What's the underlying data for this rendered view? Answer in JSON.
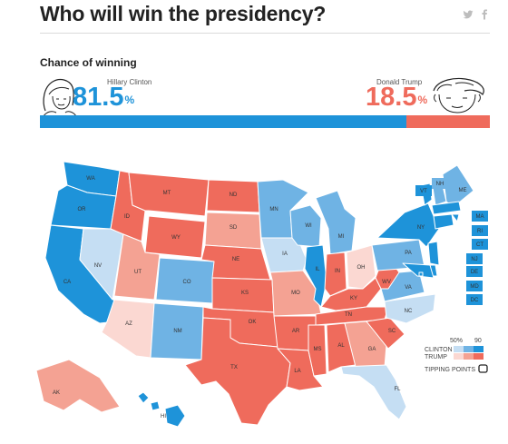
{
  "header": {
    "title": "Who will win the presidency?",
    "share_icons": [
      "twitter-icon",
      "facebook-icon"
    ]
  },
  "odds": {
    "label": "Chance of winning",
    "clinton": {
      "name": "Hillary Clinton",
      "value": "81.5",
      "unit": "%"
    },
    "trump": {
      "name": "Donald Trump",
      "value": "18.5",
      "unit": "%"
    }
  },
  "colors": {
    "clinton_strong": "#1e93d9",
    "clinton_mid": "#6fb3e4",
    "clinton_lean": "#c5def3",
    "trump_strong": "#ef6b5c",
    "trump_mid": "#f4a293",
    "trump_lean": "#fbd8d2"
  },
  "legend": {
    "scale_low": "50%",
    "scale_high": "90",
    "clinton_label": "CLINTON",
    "trump_label": "TRUMP",
    "tipping_label": "TIPPING POINTS"
  },
  "chart_data": {
    "type": "map",
    "series": [
      {
        "name": "Clinton",
        "value": 81.5
      },
      {
        "name": "Trump",
        "value": 18.5
      }
    ],
    "states": [
      {
        "abbr": "WA",
        "winner": "clinton",
        "strength": "strong"
      },
      {
        "abbr": "OR",
        "winner": "clinton",
        "strength": "strong"
      },
      {
        "abbr": "CA",
        "winner": "clinton",
        "strength": "strong"
      },
      {
        "abbr": "NV",
        "winner": "clinton",
        "strength": "lean"
      },
      {
        "abbr": "ID",
        "winner": "trump",
        "strength": "strong"
      },
      {
        "abbr": "MT",
        "winner": "trump",
        "strength": "strong"
      },
      {
        "abbr": "WY",
        "winner": "trump",
        "strength": "strong"
      },
      {
        "abbr": "UT",
        "winner": "trump",
        "strength": "mid"
      },
      {
        "abbr": "AZ",
        "winner": "trump",
        "strength": "lean"
      },
      {
        "abbr": "CO",
        "winner": "clinton",
        "strength": "mid"
      },
      {
        "abbr": "NM",
        "winner": "clinton",
        "strength": "mid"
      },
      {
        "abbr": "ND",
        "winner": "trump",
        "strength": "strong"
      },
      {
        "abbr": "SD",
        "winner": "trump",
        "strength": "mid"
      },
      {
        "abbr": "NE",
        "winner": "trump",
        "strength": "strong"
      },
      {
        "abbr": "KS",
        "winner": "trump",
        "strength": "strong"
      },
      {
        "abbr": "OK",
        "winner": "trump",
        "strength": "strong"
      },
      {
        "abbr": "TX",
        "winner": "trump",
        "strength": "strong"
      },
      {
        "abbr": "MN",
        "winner": "clinton",
        "strength": "mid"
      },
      {
        "abbr": "IA",
        "winner": "clinton",
        "strength": "lean"
      },
      {
        "abbr": "MO",
        "winner": "trump",
        "strength": "mid"
      },
      {
        "abbr": "AR",
        "winner": "trump",
        "strength": "strong"
      },
      {
        "abbr": "LA",
        "winner": "trump",
        "strength": "strong"
      },
      {
        "abbr": "WI",
        "winner": "clinton",
        "strength": "mid"
      },
      {
        "abbr": "IL",
        "winner": "clinton",
        "strength": "strong"
      },
      {
        "abbr": "MI",
        "winner": "clinton",
        "strength": "mid"
      },
      {
        "abbr": "IN",
        "winner": "trump",
        "strength": "strong"
      },
      {
        "abbr": "OH",
        "winner": "trump",
        "strength": "lean"
      },
      {
        "abbr": "KY",
        "winner": "trump",
        "strength": "strong"
      },
      {
        "abbr": "TN",
        "winner": "trump",
        "strength": "strong"
      },
      {
        "abbr": "MS",
        "winner": "trump",
        "strength": "strong"
      },
      {
        "abbr": "AL",
        "winner": "trump",
        "strength": "strong"
      },
      {
        "abbr": "GA",
        "winner": "trump",
        "strength": "mid"
      },
      {
        "abbr": "SC",
        "winner": "trump",
        "strength": "strong"
      },
      {
        "abbr": "FL",
        "winner": "clinton",
        "strength": "lean"
      },
      {
        "abbr": "NC",
        "winner": "clinton",
        "strength": "lean"
      },
      {
        "abbr": "VA",
        "winner": "clinton",
        "strength": "mid"
      },
      {
        "abbr": "WV",
        "winner": "trump",
        "strength": "strong"
      },
      {
        "abbr": "PA",
        "winner": "clinton",
        "strength": "mid"
      },
      {
        "abbr": "NY",
        "winner": "clinton",
        "strength": "strong"
      },
      {
        "abbr": "VT",
        "winner": "clinton",
        "strength": "strong"
      },
      {
        "abbr": "NH",
        "winner": "clinton",
        "strength": "mid"
      },
      {
        "abbr": "ME",
        "winner": "clinton",
        "strength": "mid"
      },
      {
        "abbr": "MA",
        "winner": "clinton",
        "strength": "strong"
      },
      {
        "abbr": "RI",
        "winner": "clinton",
        "strength": "strong"
      },
      {
        "abbr": "CT",
        "winner": "clinton",
        "strength": "strong"
      },
      {
        "abbr": "NJ",
        "winner": "clinton",
        "strength": "strong"
      },
      {
        "abbr": "DE",
        "winner": "clinton",
        "strength": "strong"
      },
      {
        "abbr": "MD",
        "winner": "clinton",
        "strength": "strong"
      },
      {
        "abbr": "DC",
        "winner": "clinton",
        "strength": "strong"
      },
      {
        "abbr": "AK",
        "winner": "trump",
        "strength": "mid"
      },
      {
        "abbr": "HI",
        "winner": "clinton",
        "strength": "strong"
      }
    ]
  }
}
